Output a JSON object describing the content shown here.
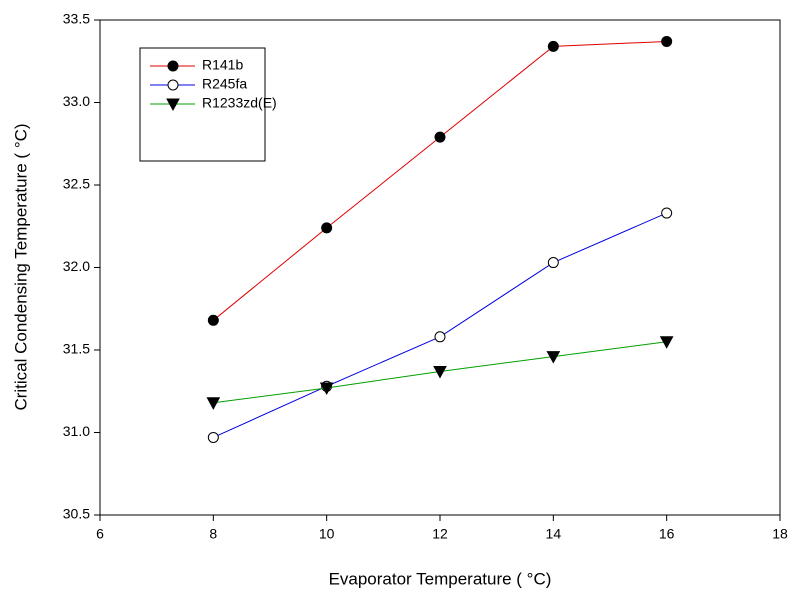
{
  "chart_data": {
    "type": "line",
    "xlabel": "Evaporator Temperature ( °C)",
    "ylabel": "Critical Condensing Temperature ( °C)",
    "x": [
      8,
      10,
      12,
      14,
      16
    ],
    "series": [
      {
        "name": "R141b",
        "color": "#e00000",
        "marker": "filled-circle",
        "values": [
          31.68,
          32.24,
          32.79,
          33.34,
          33.37
        ]
      },
      {
        "name": "R245fa",
        "color": "#0000e0",
        "marker": "open-circle",
        "values": [
          30.97,
          31.28,
          31.58,
          32.03,
          32.33
        ]
      },
      {
        "name": "R1233zd(E)",
        "color": "#00a000",
        "marker": "triangle-down",
        "values": [
          31.18,
          31.27,
          31.37,
          31.46,
          31.55
        ]
      }
    ],
    "xlim": [
      6,
      18
    ],
    "xticks": [
      6,
      8,
      10,
      12,
      14,
      16,
      18
    ],
    "ylim": [
      30.5,
      33.5
    ],
    "yticks": [
      30.5,
      {
        "value": 31,
        "label": "31.0"
      },
      31.5,
      {
        "value": 32,
        "label": "32.0"
      },
      32.5,
      {
        "value": 33,
        "label": "33.0"
      },
      33.5
    ],
    "legend": "upper left"
  }
}
